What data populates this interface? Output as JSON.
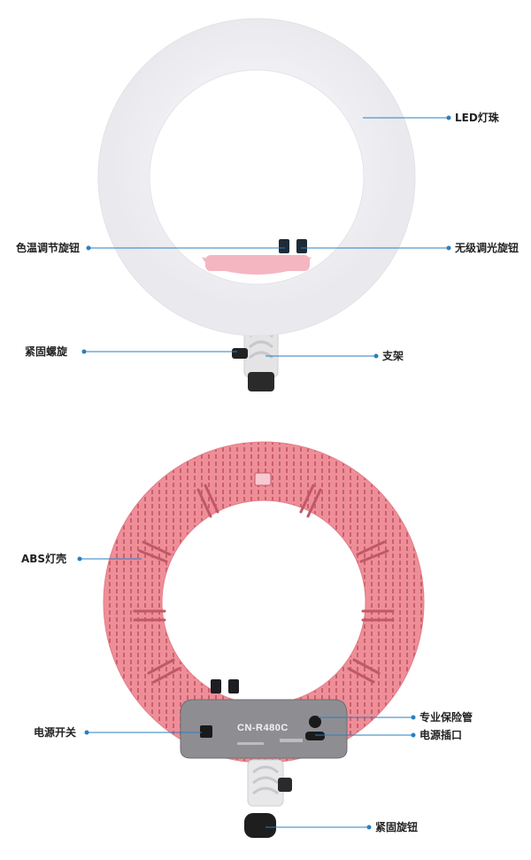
{
  "product": {
    "model": "CN-R480C"
  },
  "front_view": {
    "labels": {
      "led": "LED灯珠",
      "color_temp_knob": "色温调节旋钮",
      "dimmer_knob": "无级调光旋钮",
      "tighten_screw": "紧固螺旋",
      "bracket": "支架"
    }
  },
  "back_view": {
    "labels": {
      "abs_shell": "ABS灯壳",
      "fuse": "专业保险管",
      "power_switch": "电源开关",
      "power_socket": "电源插口",
      "tighten_knob": "紧固旋钮"
    }
  },
  "colors": {
    "ring_front": "#f7f7f8",
    "ring_pink": "#ee8e98",
    "accent_pink": "#f4b6c0",
    "plate": "#8e8e92",
    "leader_line": "#2a7fc0"
  }
}
